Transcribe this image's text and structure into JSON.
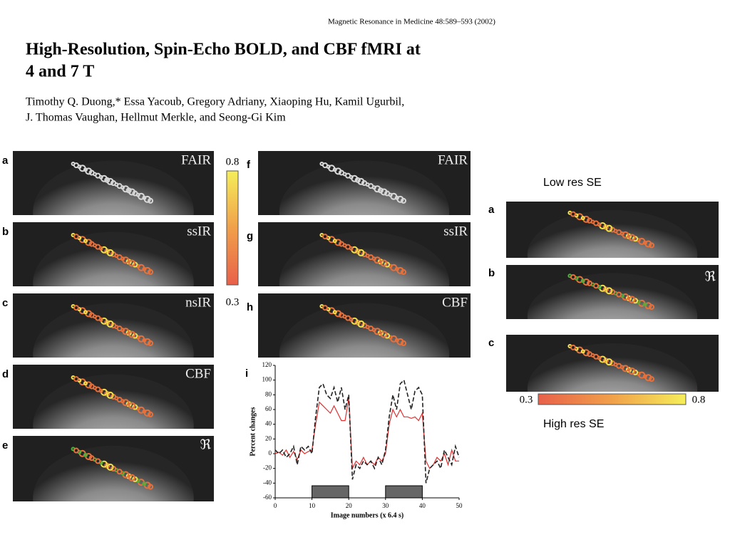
{
  "header": {
    "journal": "Magnetic Resonance in Medicine 48:589–593 (2002)",
    "title_lines": [
      "High-Resolution, Spin-Echo BOLD, and CBF fMRI at",
      "4 and 7 T"
    ],
    "authors_lines": [
      "Timothy Q. Duong,* Essa Yacoub, Gregory Adriany, Xiaoping Hu, Kamil Ugurbil,",
      "J. Thomas Vaughan, Hellmut Merkle, and Seong-Gi Kim"
    ]
  },
  "left_panels": [
    {
      "label": "a",
      "tag": "FAIR"
    },
    {
      "label": "b",
      "tag": "ssIR"
    },
    {
      "label": "c",
      "tag": "nsIR"
    },
    {
      "label": "d",
      "tag": "CBF"
    },
    {
      "label": "e",
      "tag": "ℜ"
    }
  ],
  "left_colorbar": {
    "max": 0.8,
    "min": 0.3
  },
  "middle_panels": [
    {
      "label": "f",
      "tag": "FAIR"
    },
    {
      "label": "g",
      "tag": "ssIR"
    },
    {
      "label": "h",
      "tag": "CBF"
    }
  ],
  "chart_data": {
    "type": "line",
    "panel_label": "i",
    "xlabel": "Image numbers (x 6.4 s)",
    "ylabel": "Percent changes",
    "x": [
      0,
      1,
      2,
      3,
      4,
      5,
      6,
      7,
      8,
      9,
      10,
      11,
      12,
      13,
      14,
      15,
      16,
      17,
      18,
      19,
      20,
      21,
      22,
      23,
      24,
      25,
      26,
      27,
      28,
      29,
      30,
      31,
      32,
      33,
      34,
      35,
      36,
      37,
      38,
      39,
      40,
      41,
      42,
      43,
      44,
      45,
      46,
      47,
      48,
      49,
      50
    ],
    "series": [
      {
        "color": "#e03030",
        "style": "solid",
        "values": [
          0,
          2,
          -2,
          5,
          -5,
          3,
          -8,
          5,
          0,
          3,
          5,
          40,
          70,
          65,
          60,
          55,
          65,
          55,
          45,
          45,
          75,
          -20,
          -10,
          -15,
          -5,
          -15,
          -10,
          -15,
          -5,
          -10,
          0,
          40,
          60,
          50,
          60,
          50,
          50,
          48,
          50,
          45,
          55,
          -10,
          -20,
          -15,
          -5,
          -10,
          0,
          -15,
          5,
          -10,
          -10
        ]
      },
      {
        "color": "#222222",
        "style": "dashed",
        "values": [
          5,
          0,
          5,
          -5,
          0,
          10,
          -15,
          10,
          5,
          10,
          0,
          50,
          90,
          95,
          80,
          75,
          90,
          70,
          90,
          60,
          80,
          -35,
          -15,
          -20,
          -10,
          -15,
          -10,
          -20,
          -5,
          -15,
          5,
          50,
          80,
          60,
          95,
          100,
          80,
          60,
          85,
          90,
          80,
          -40,
          -20,
          -15,
          -10,
          -20,
          5,
          -5,
          -15,
          10,
          -5
        ]
      }
    ],
    "stimulus_blocks": [
      [
        10,
        20
      ],
      [
        30,
        40
      ]
    ],
    "xlim": [
      0,
      50
    ],
    "xticks": [
      0,
      10,
      20,
      30,
      40,
      50
    ],
    "ylim": [
      -60,
      120
    ],
    "yticks": [
      -60,
      -40,
      -20,
      0,
      20,
      40,
      60,
      80,
      100,
      120
    ]
  },
  "right": {
    "top_caption": "Low res SE",
    "panels": [
      {
        "label": "a"
      },
      {
        "label": "b",
        "tag": "ℜ"
      },
      {
        "label": "c"
      }
    ],
    "colorbar": {
      "min": 0.3,
      "max": 0.8
    },
    "bottom_caption": "High res SE"
  }
}
